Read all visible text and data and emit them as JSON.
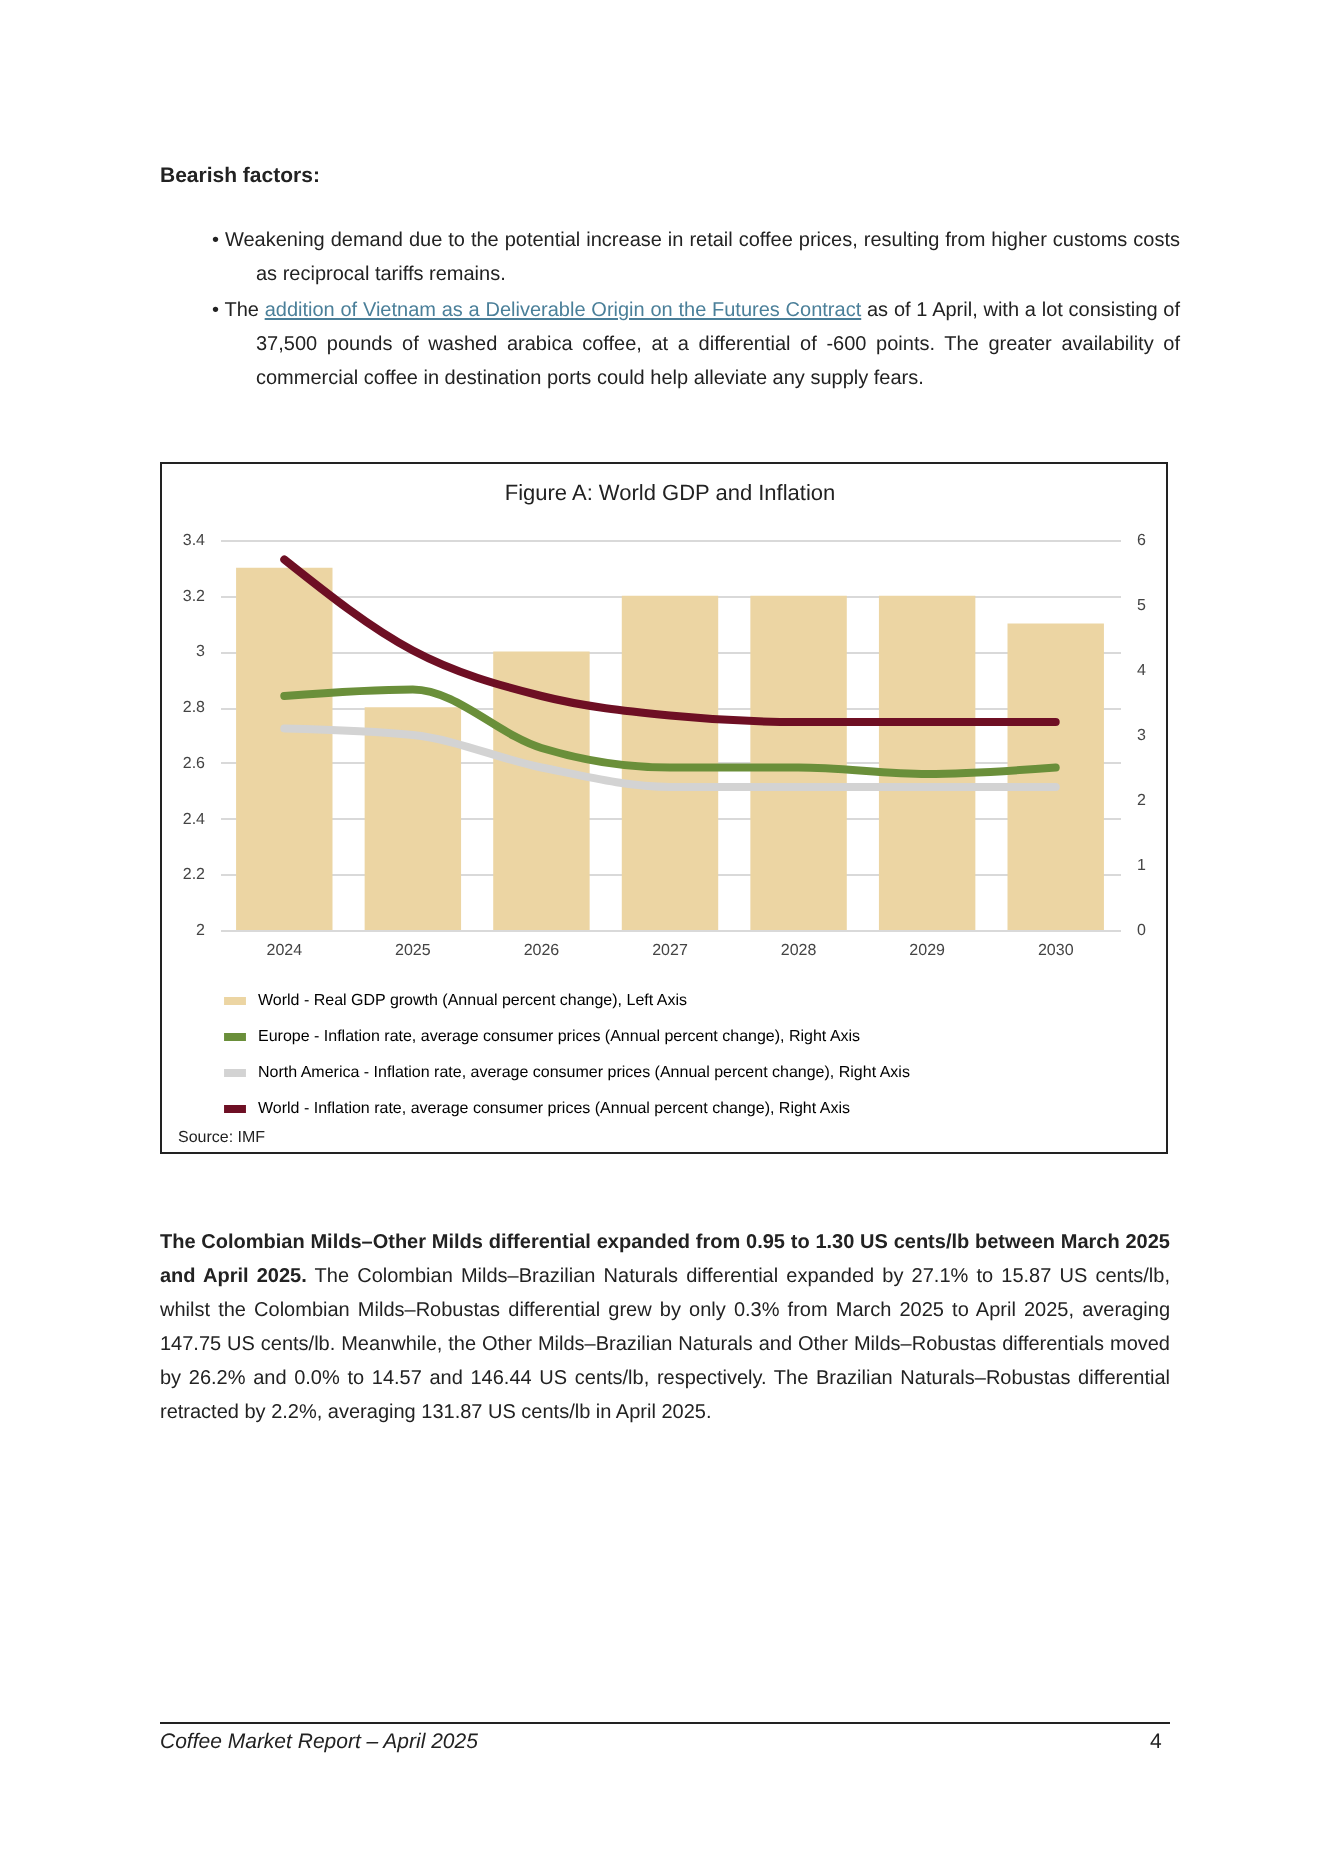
{
  "chart_data": {
    "type": "bar",
    "title": "Figure A: World GDP and Inflation",
    "categories": [
      "2024",
      "2025",
      "2026",
      "2027",
      "2028",
      "2029",
      "2030"
    ],
    "series": [
      {
        "name": "World - Real GDP growth (Annual percent change), Left Axis",
        "color": "#ecd5a3",
        "values": [
          3.3,
          2.8,
          3.0,
          3.2,
          3.2,
          3.2,
          3.1
        ]
      },
      {
        "name": "Europe - Inflation rate, average consumer prices (Annual percent change), Right Axis",
        "type": "line",
        "axis": "y2",
        "color": "#6a8f3a",
        "values": [
          3.6,
          3.7,
          2.8,
          2.5,
          2.5,
          2.4,
          2.5
        ]
      },
      {
        "name": "North America - Inflation rate, average consumer prices (Annual percent change), Right Axis",
        "type": "line",
        "axis": "y2",
        "color": "#d3d3d3",
        "values": [
          3.1,
          3.0,
          2.5,
          2.2,
          2.2,
          2.2,
          2.2
        ]
      },
      {
        "name": "World - Inflation rate, average consumer prices (Annual percent change), Right Axis",
        "type": "line",
        "axis": "y2",
        "color": "#6e0f24",
        "values": [
          5.7,
          4.3,
          3.6,
          3.3,
          3.2,
          3.2,
          3.2
        ]
      }
    ],
    "ylim": [
      2,
      3.4
    ],
    "yticks": [
      {
        "value": 2,
        "label": "2"
      },
      2.2,
      2.4,
      2.6,
      2.8,
      {
        "value": 3,
        "label": "3"
      },
      3.2,
      3.4
    ],
    "y2lim": [
      0,
      6
    ],
    "y2ticks": [
      0,
      1,
      2,
      3,
      4,
      5,
      6
    ],
    "grid": "y",
    "legend": "bottom",
    "line_style": "solid",
    "annotations": [
      "Bearish factors:",
      "• Weakening demand due to the potential increase in retail coffee prices, resulting from higher customs costs as reciprocal tariffs remains.",
      "• The",
      "addition of Vietnam as a Deliverable Origin on the Futures Contract",
      "as of 1 April, with a lot consisting of 37,500 pounds of washed arabica coffee, at a differential of -600 points. The greater availability of commercial coffee in destination ports could help alleviate any supply fears.",
      "Source: IMF",
      "The Colombian Milds–Other Milds differential expanded from 0.95 to 1.30 US cents/lb between March 2025 and April 2025.",
      "The Colombian Milds–Brazilian Naturals differential expanded by 27.1% to 15.87 US cents/lb, whilst the Colombian Milds–Robustas differential grew by only 0.3% from March 2025 to April 2025, averaging 147.75 US cents/lb. Meanwhile, the Other Milds–Brazilian Naturals and Other Milds–Robustas differentials moved by 26.2% and 0.0% to 14.57 and 146.44 US cents/lb, respectively. The Brazilian Naturals–Robustas differential retracted by 2.2%, averaging 131.87 US cents/lb in April 2025.",
      "Coffee Market Report – April 2025",
      "4"
    ]
  }
}
